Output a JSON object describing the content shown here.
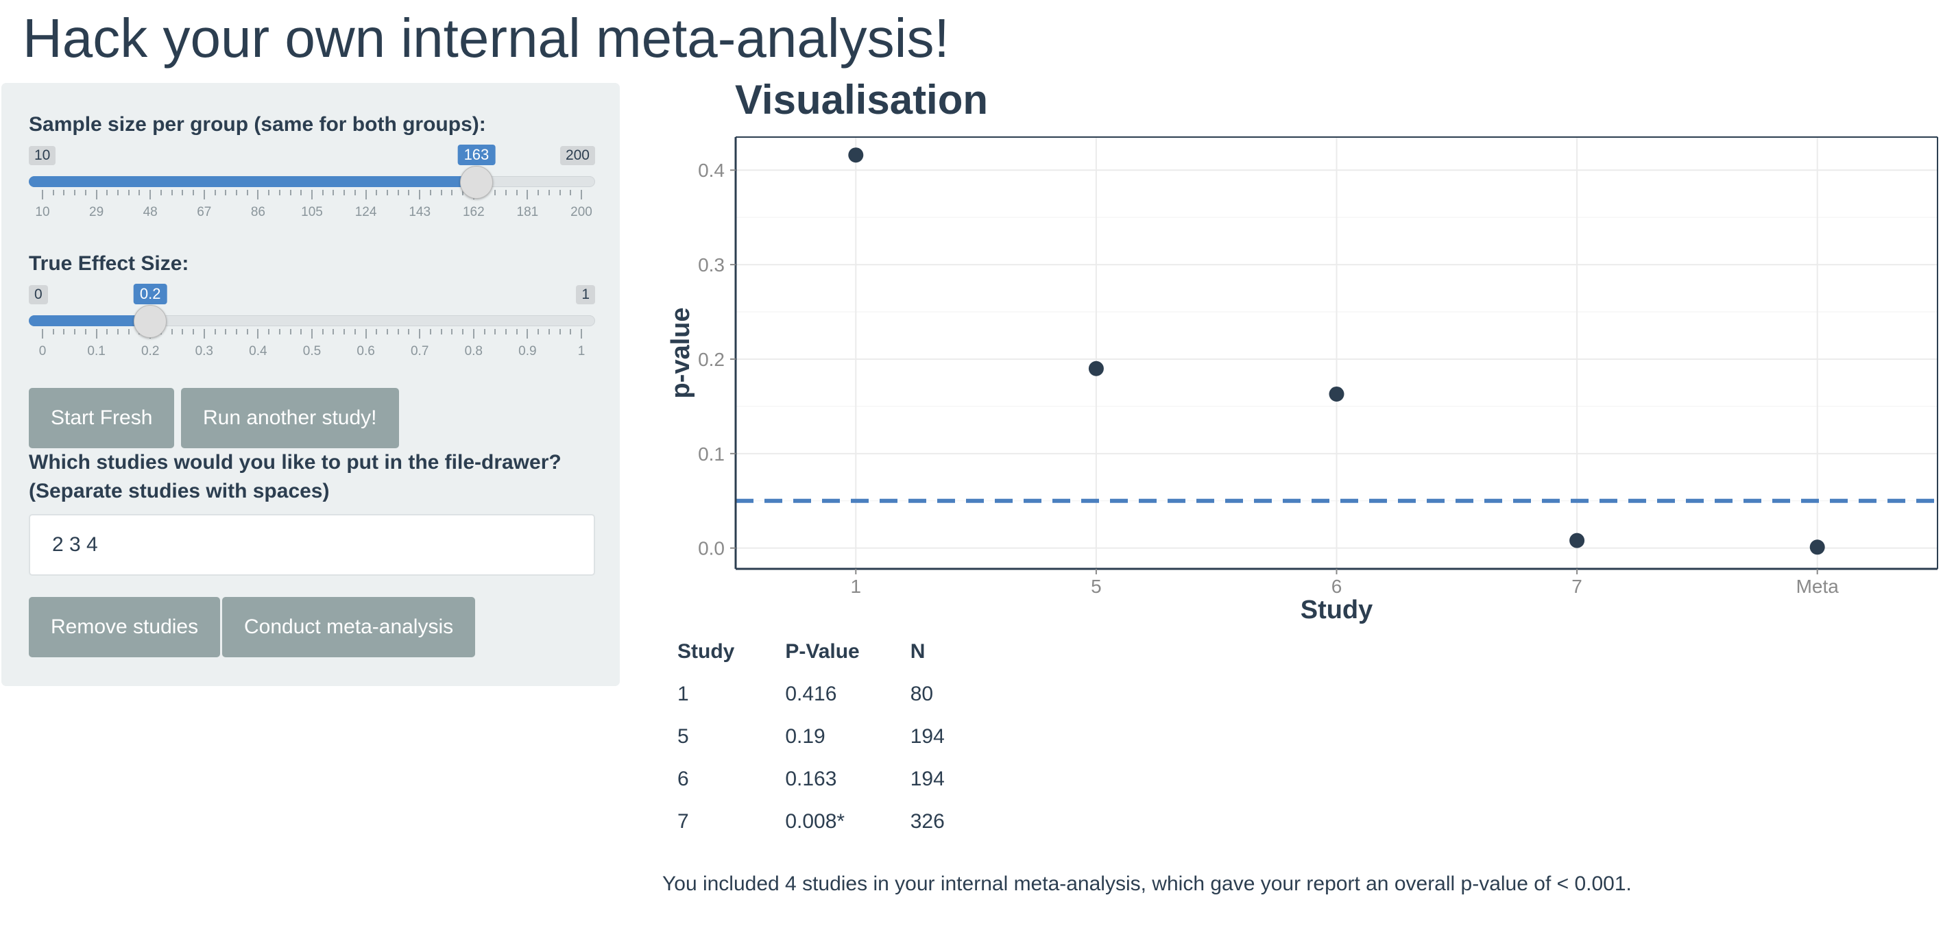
{
  "page": {
    "title": "Hack your own internal meta-analysis!"
  },
  "sidebar": {
    "sample_size": {
      "label": "Sample size per group (same for both groups):",
      "min": 10,
      "max": 200,
      "value": 163,
      "min_label": "10",
      "max_label": "200",
      "value_label": "163",
      "ticks": [
        "10",
        "29",
        "48",
        "67",
        "86",
        "105",
        "124",
        "143",
        "162",
        "181",
        "200"
      ]
    },
    "effect_size": {
      "label": "True Effect Size:",
      "min": 0,
      "max": 1,
      "value": 0.2,
      "min_label": "0",
      "max_label": "1",
      "value_label": "0.2",
      "ticks": [
        "0",
        "0.1",
        "0.2",
        "0.3",
        "0.4",
        "0.5",
        "0.6",
        "0.7",
        "0.8",
        "0.9",
        "1"
      ]
    },
    "buttons": {
      "start_fresh": "Start Fresh",
      "run_study": "Run another study!"
    },
    "file_drawer": {
      "label_line1": "Which studies would you like to put in the file-drawer?",
      "label_line2": "(Separate studies with spaces)",
      "value": "2 3 4"
    },
    "actions": {
      "remove": "Remove studies",
      "meta": "Conduct meta-analysis"
    }
  },
  "main": {
    "section_title": "Visualisation",
    "results": {
      "headers": [
        "Study",
        "P-Value",
        "N"
      ],
      "rows": [
        [
          "1",
          "0.416",
          "80"
        ],
        [
          "5",
          "0.19",
          "194"
        ],
        [
          "6",
          "0.163",
          "194"
        ],
        [
          "7",
          "0.008*",
          "326"
        ]
      ]
    },
    "summary": "You included 4 studies in your internal meta-analysis, which gave your report an overall p-value of < 0.001."
  },
  "chart_data": {
    "type": "scatter",
    "categories": [
      "1",
      "5",
      "6",
      "7",
      "Meta"
    ],
    "values": [
      0.416,
      0.19,
      0.163,
      0.008,
      0.001
    ],
    "xlabel": "Study",
    "ylabel": "p-value",
    "ylim": [
      -0.022,
      0.435
    ],
    "yticks": [
      0.0,
      0.1,
      0.2,
      0.3,
      0.4
    ],
    "ytick_labels": [
      "0.0",
      "0.1",
      "0.2",
      "0.3",
      "0.4"
    ],
    "hline": 0.05,
    "grid": true,
    "colors": {
      "point": "#2c3e50",
      "hline": "#4a7fbf",
      "grid": "#ebebeb",
      "axis": "#2c3e50"
    }
  }
}
